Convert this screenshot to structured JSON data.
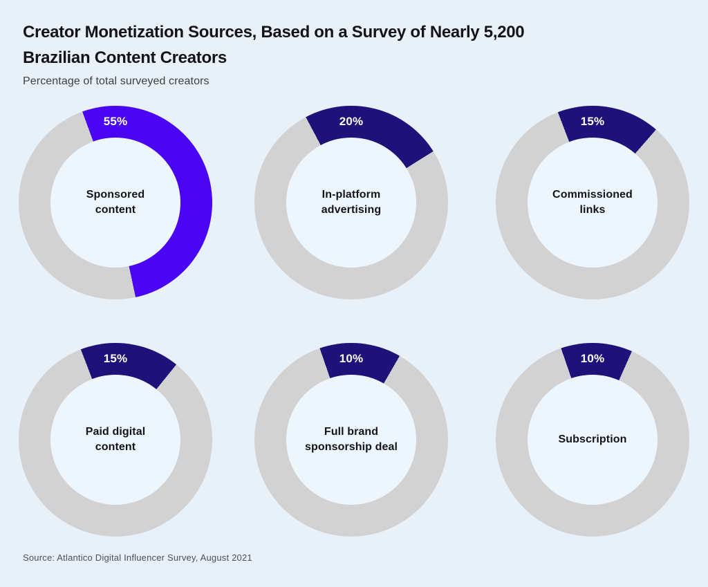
{
  "header": {
    "title_line1": "Creator Monetization Sources, Based on a Survey of Nearly 5,200",
    "title_line2": "Brazilian Content Creators",
    "subtitle": "Percentage of total surveyed creators"
  },
  "footer": {
    "source": "Source: Atlantico Digital Influencer Survey, August 2021"
  },
  "chart_data": {
    "type": "pie",
    "variant": "donut_small_multiples",
    "title": "Creator Monetization Sources, Based on a Survey of Nearly 5,200 Brazilian Content Creators",
    "subtitle": "Percentage of total surveyed creators",
    "unit": "percent of total surveyed creators",
    "legend": "none",
    "grid": false,
    "layout": "2 rows x 3 columns of donut charts",
    "categories": [
      "Sponsored content",
      "In-platform advertising",
      "Commissioned links",
      "Paid digital content",
      "Full brand sponsorship deal",
      "Subscription"
    ],
    "values": [
      55,
      20,
      15,
      15,
      10,
      10
    ],
    "donuts": [
      {
        "label": "Sponsored content",
        "value": 55,
        "pct_label": "55%",
        "fill": "#4a06f3",
        "start_deg": -20,
        "sweep_deg": 188
      },
      {
        "label": "In-platform advertising",
        "value": 20,
        "pct_label": "20%",
        "fill": "#1e1179",
        "start_deg": -28,
        "sweep_deg": 86
      },
      {
        "label": "Commissioned links",
        "value": 15,
        "pct_label": "15%",
        "fill": "#1e1179",
        "start_deg": -21,
        "sweep_deg": 62
      },
      {
        "label": "Paid digital content",
        "value": 15,
        "pct_label": "15%",
        "fill": "#1e1179",
        "start_deg": -21,
        "sweep_deg": 60
      },
      {
        "label": "Full brand sponsorship deal",
        "value": 10,
        "pct_label": "10%",
        "fill": "#1e1179",
        "start_deg": -19,
        "sweep_deg": 49
      },
      {
        "label": "Subscription",
        "value": 10,
        "pct_label": "10%",
        "fill": "#1e1179",
        "start_deg": -19,
        "sweep_deg": 43
      }
    ],
    "colors": {
      "highlight": "#4a06f3",
      "segment": "#1e1179",
      "track": "#d2d2d2",
      "page_background": "#e8f1f8",
      "hole_background": "#edf6fc",
      "pct_text": "#ffffff",
      "label_text": "#131318"
    }
  }
}
